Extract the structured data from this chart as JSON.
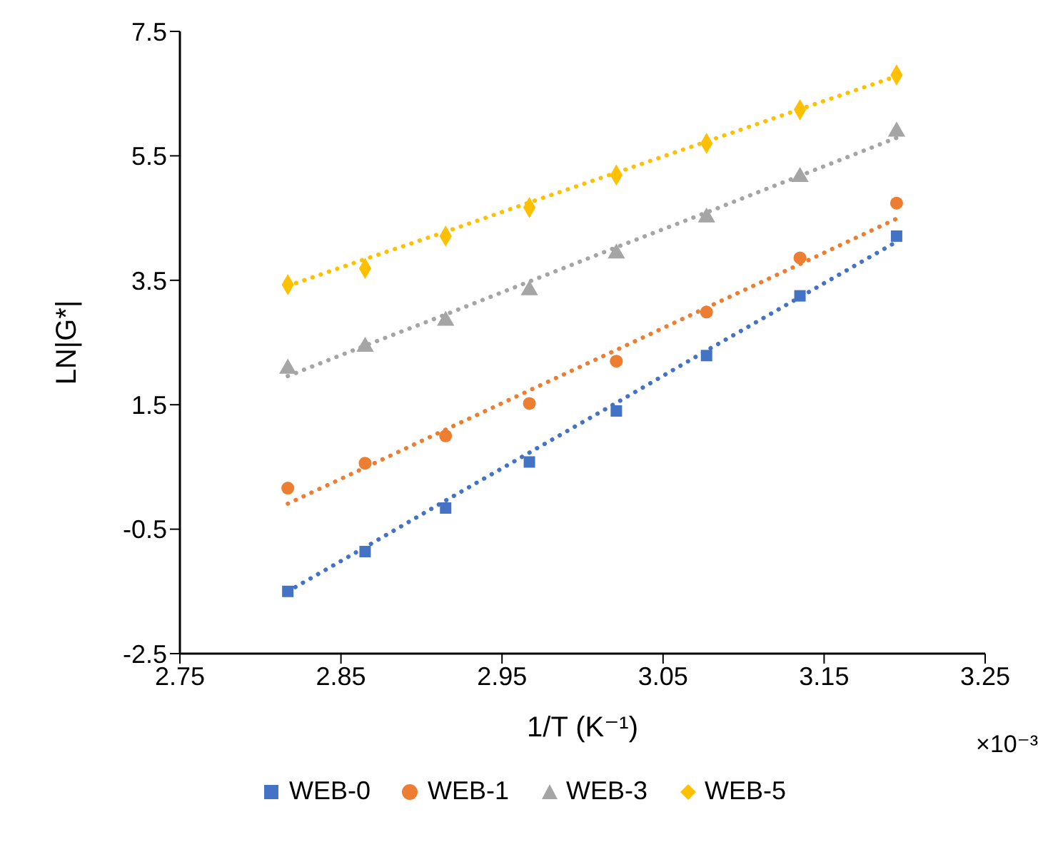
{
  "chart_data": {
    "type": "scatter",
    "xlabel": "1/T (K⁻¹)",
    "ylabel": "LN|G*|",
    "annotations": [
      "×10⁻³"
    ],
    "xlim": [
      2.75,
      3.25
    ],
    "xticks": [
      2.75,
      2.85,
      2.95,
      3.05,
      3.15,
      3.25
    ],
    "ylim": [
      -2.5,
      7.5
    ],
    "yticks": [
      -2.5,
      -0.5,
      1.5,
      3.5,
      5.5,
      7.5
    ],
    "grid": false,
    "legend": "bottom",
    "x": [
      2.817,
      2.865,
      2.915,
      2.967,
      3.021,
      3.077,
      3.135,
      3.195
    ],
    "series": [
      {
        "name": "WEB-0",
        "color": "#4472c4",
        "marker": "square",
        "values": [
          -1.5,
          -0.86,
          -0.16,
          0.58,
          1.4,
          2.29,
          3.25,
          4.21
        ]
      },
      {
        "name": "WEB-1",
        "color": "#ed7d31",
        "marker": "circle",
        "values": [
          0.16,
          0.56,
          1.0,
          1.52,
          2.2,
          2.99,
          3.86,
          4.74
        ]
      },
      {
        "name": "WEB-3",
        "color": "#a5a5a5",
        "marker": "triangle",
        "values": [
          2.08,
          2.43,
          2.85,
          3.34,
          3.93,
          4.51,
          5.16,
          5.89
        ]
      },
      {
        "name": "WEB-5",
        "color": "#ffc000",
        "marker": "diamond",
        "values": [
          3.43,
          3.69,
          4.21,
          4.67,
          5.19,
          5.7,
          6.24,
          6.8
        ]
      },
      {
        "type": "line",
        "color": "#4472c4",
        "marker": "none",
        "line_style": "dotted",
        "values": [
          -1.5,
          -0.79,
          -0.04,
          0.73,
          1.53,
          2.37,
          3.23,
          4.12
        ]
      },
      {
        "type": "line",
        "color": "#ed7d31",
        "marker": "none",
        "line_style": "dotted",
        "values": [
          -0.09,
          0.49,
          1.1,
          1.73,
          2.38,
          3.06,
          3.76,
          4.49
        ]
      },
      {
        "type": "line",
        "color": "#a5a5a5",
        "marker": "none",
        "line_style": "dotted",
        "values": [
          1.96,
          2.45,
          2.95,
          3.48,
          4.03,
          4.59,
          5.18,
          5.79
        ]
      },
      {
        "type": "line",
        "color": "#ffc000",
        "marker": "none",
        "line_style": "dotted",
        "values": [
          3.41,
          3.84,
          4.28,
          4.75,
          5.23,
          5.73,
          6.25,
          6.78
        ]
      }
    ]
  }
}
